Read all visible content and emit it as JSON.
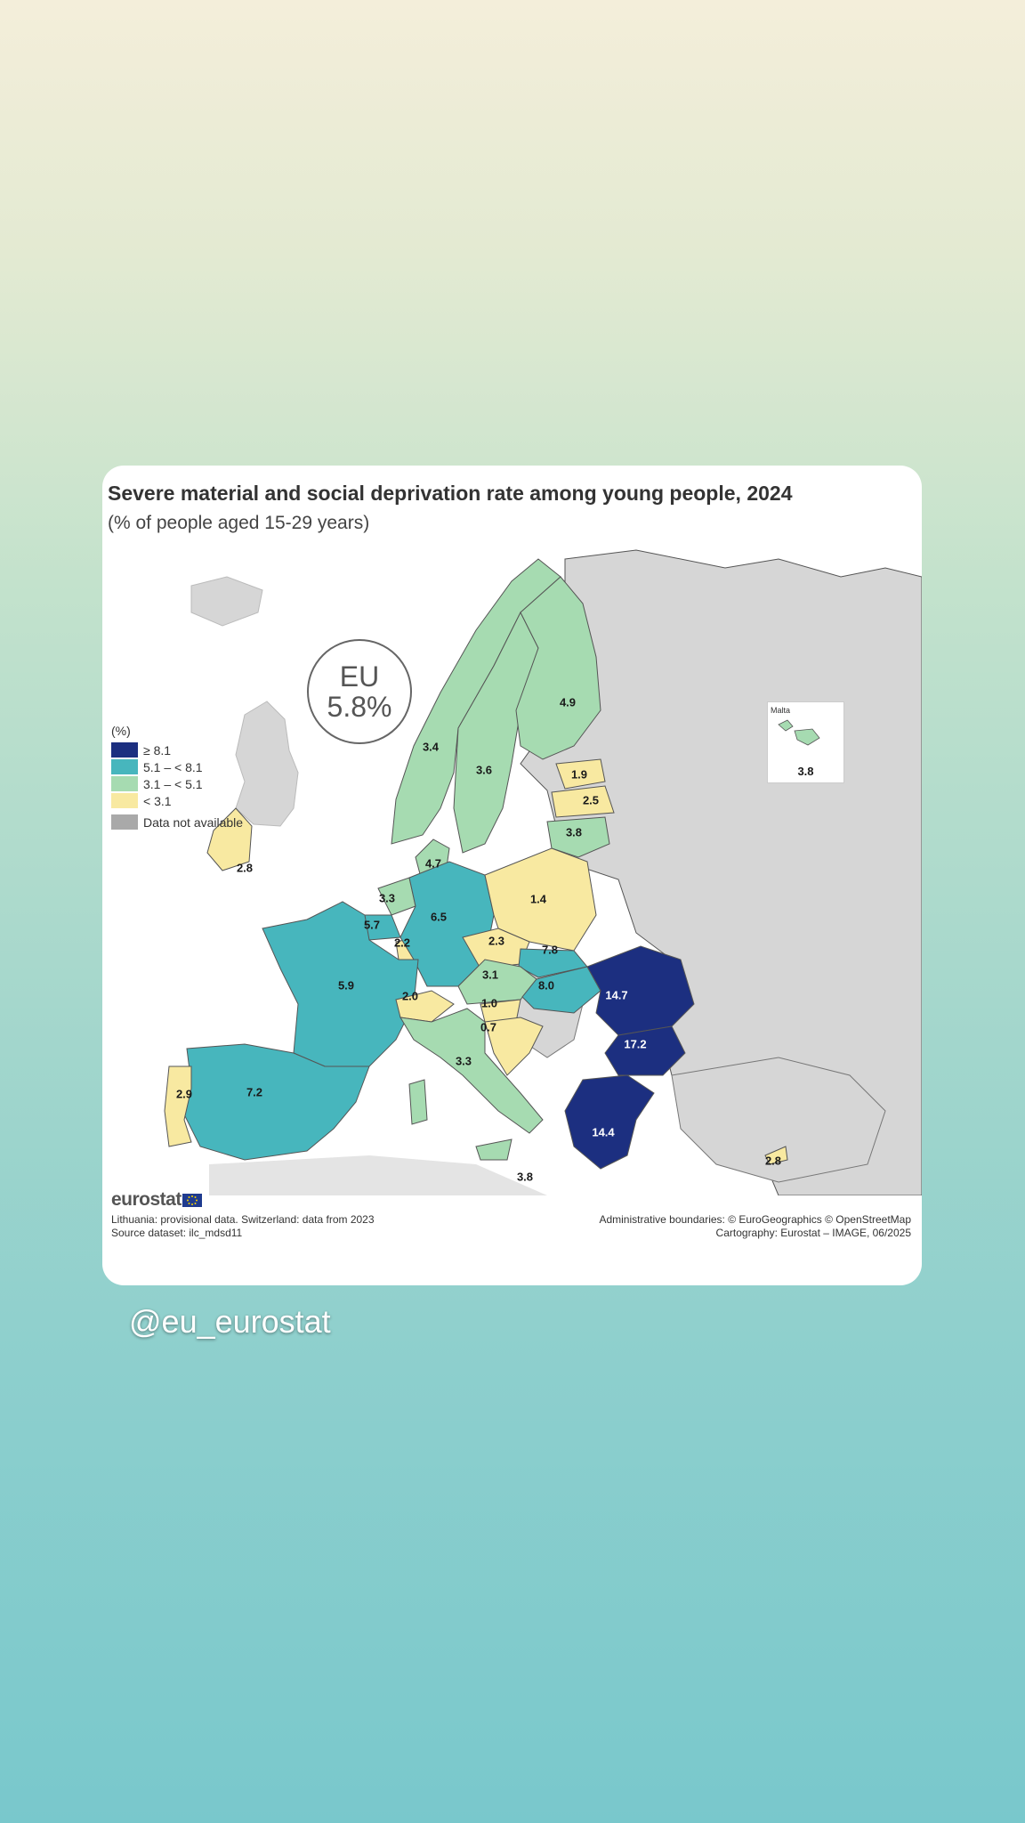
{
  "card": {
    "title": "Severe material and social deprivation rate among young people, 2024",
    "subtitle": "(% of people aged 15-29 years)"
  },
  "eu_badge": {
    "label": "EU",
    "value": "5.8%"
  },
  "legend": {
    "title": "(%)",
    "items": [
      {
        "label": "≥ 8.1",
        "color": "#1c2f80"
      },
      {
        "label": "5.1 – < 8.1",
        "color": "#47b6bd"
      },
      {
        "label": "3.1 – < 5.1",
        "color": "#a6dbb1"
      },
      {
        "label": "< 3.1",
        "color": "#f8e9a1"
      }
    ],
    "na": {
      "label": "Data not available",
      "color": "#a9a9a9"
    }
  },
  "map_data": {
    "values": [
      {
        "id": "finland",
        "value": "4.9"
      },
      {
        "id": "norway",
        "value": "3.4"
      },
      {
        "id": "sweden",
        "value": "3.6"
      },
      {
        "id": "estonia",
        "value": "1.9"
      },
      {
        "id": "latvia",
        "value": "2.5"
      },
      {
        "id": "lithuania",
        "value": "3.8"
      },
      {
        "id": "denmark",
        "value": "4.7"
      },
      {
        "id": "ireland",
        "value": "2.8"
      },
      {
        "id": "netherlands",
        "value": "3.3"
      },
      {
        "id": "belgium",
        "value": "5.7"
      },
      {
        "id": "luxembourg",
        "value": "2.2"
      },
      {
        "id": "germany",
        "value": "6.5"
      },
      {
        "id": "poland",
        "value": "1.4"
      },
      {
        "id": "czechia",
        "value": "2.3"
      },
      {
        "id": "slovakia",
        "value": "7.8"
      },
      {
        "id": "austria",
        "value": "3.1"
      },
      {
        "id": "hungary",
        "value": "8.0"
      },
      {
        "id": "france",
        "value": "5.9"
      },
      {
        "id": "switzerland",
        "value": "2.0"
      },
      {
        "id": "slovenia",
        "value": "1.0"
      },
      {
        "id": "croatia",
        "value": "0.7"
      },
      {
        "id": "romania",
        "value": "14.7"
      },
      {
        "id": "bulgaria",
        "value": "17.2"
      },
      {
        "id": "italy",
        "value": "3.3"
      },
      {
        "id": "portugal",
        "value": "2.9"
      },
      {
        "id": "spain",
        "value": "7.2"
      },
      {
        "id": "greece",
        "value": "14.4"
      },
      {
        "id": "malta-sicily-label",
        "value": "3.8"
      },
      {
        "id": "cyprus",
        "value": "2.8"
      }
    ]
  },
  "malta_inset": {
    "name": "Malta",
    "value": "3.8"
  },
  "footer": {
    "logo": "eurostat",
    "note_1": "Lithuania: provisional data. Switzerland: data from 2023",
    "note_2": "Source dataset: ilc_mdsd11",
    "credit_1": "Administrative boundaries: © EuroGeographics © OpenStreetMap",
    "credit_2": "Cartography: Eurostat – IMAGE, 06/2025"
  },
  "handle": "@eu_eurostat"
}
